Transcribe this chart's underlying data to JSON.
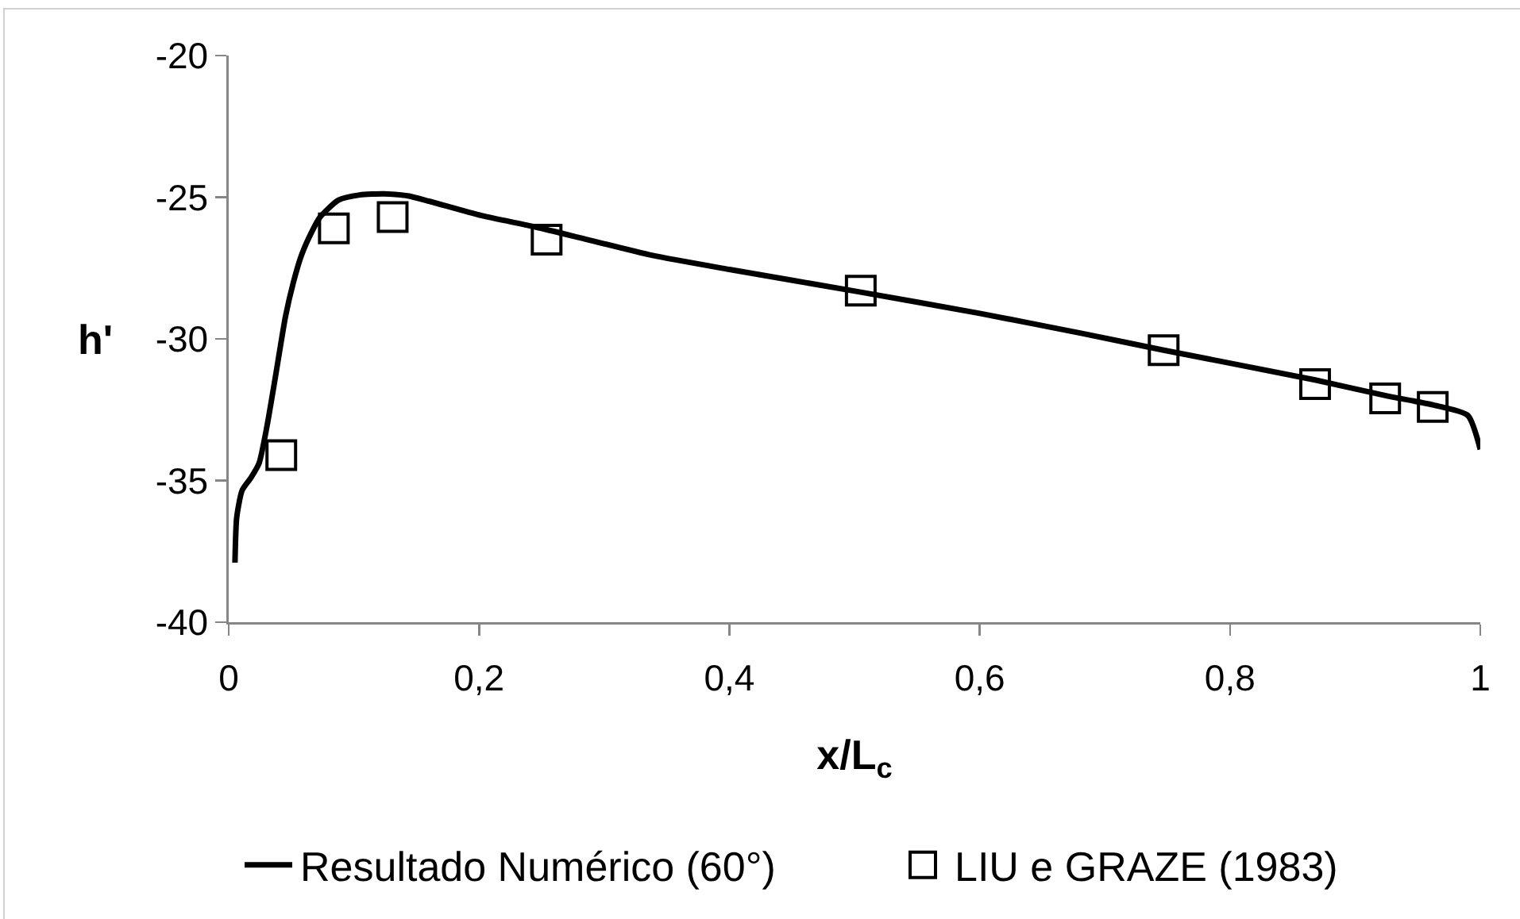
{
  "chart_data": {
    "type": "line",
    "xlabel": "x/L$_{c}$",
    "ylabel": "h'",
    "xlim": [
      0,
      1
    ],
    "xticks": [
      0,
      {
        "value": 0.2,
        "label": "0,2"
      },
      {
        "value": 0.4,
        "label": "0,4"
      },
      {
        "value": 0.6,
        "label": "0,6"
      },
      {
        "value": 0.8,
        "label": "0,8"
      },
      1
    ],
    "ylim": [
      -40,
      -20
    ],
    "yticks": [
      -40,
      -35,
      -30,
      -25,
      -20
    ],
    "grid": false,
    "legend": "bottom",
    "series": [
      {
        "name": "Resultado Numérico (60°)",
        "marker": "none",
        "color": "#000000",
        "x": [
          0.005,
          0.0064,
          0.0107,
          0.0178,
          0.0242,
          0.0305,
          0.0369,
          0.0454,
          0.0517,
          0.0581,
          0.0666,
          0.073,
          0.0877,
          0.1047,
          0.124,
          0.143,
          0.16,
          0.202,
          0.245,
          0.287,
          0.338,
          0.4,
          0.505,
          0.6,
          0.681,
          0.747,
          0.868,
          0.924,
          0.962,
          0.99,
          1.0
        ],
        "values": [
          -37.9,
          -36.3,
          -35.35,
          -34.9,
          -34.4,
          -33.1,
          -31.45,
          -29.2,
          -28.0,
          -27.05,
          -26.2,
          -25.7,
          -25.1,
          -24.92,
          -24.88,
          -24.95,
          -25.14,
          -25.65,
          -26.05,
          -26.5,
          -27.05,
          -27.55,
          -28.35,
          -29.1,
          -29.8,
          -30.4,
          -31.45,
          -32.0,
          -32.33,
          -32.7,
          -33.9
        ]
      },
      {
        "name": "LIU e GRAZE (1983)",
        "type": "scatter",
        "marker": "square",
        "color": "#000000",
        "x": [
          0.042,
          0.084,
          0.131,
          0.254,
          0.505,
          0.747,
          0.868,
          0.924,
          0.962
        ],
        "values": [
          -34.1,
          -26.1,
          -25.7,
          -26.5,
          -28.3,
          -30.4,
          -31.6,
          -32.1,
          -32.4
        ]
      }
    ]
  }
}
